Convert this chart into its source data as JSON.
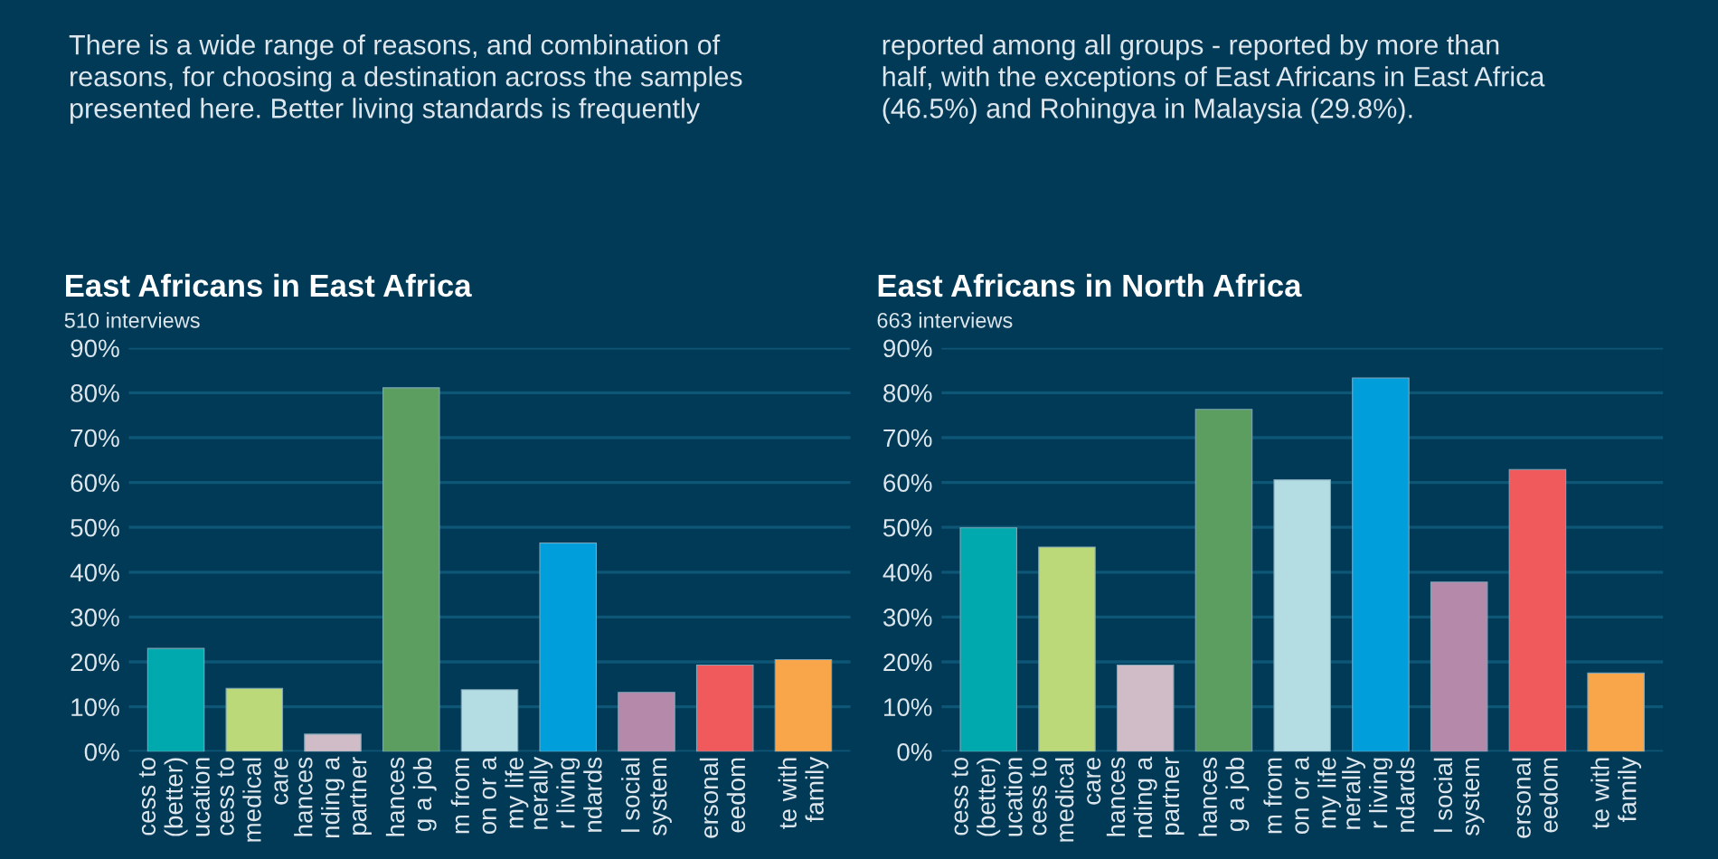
{
  "chart_data": [
    {
      "type": "bar",
      "title": "East Africans in East Africa",
      "subtitle": "510 interviews",
      "annotations": [
        "There is a wide range of reasons, and combination of\nreasons, for choosing a destination across the samples\npresented here. Better living standards is frequently"
      ],
      "categories": [
        "cess to\n(better)\nucation",
        "cess to\nmedical\ncare",
        "hances\nnding a\npartner",
        "hances\ng a job",
        "m from\non or a\nmy life",
        "nerally\nr living\nndards",
        "l social\nsystem",
        "ersonal\needom",
        "te with\nfamily"
      ],
      "values": [
        23,
        14.1,
        3.9,
        81.1,
        13.8,
        46.5,
        13.2,
        19.3,
        20.5
      ],
      "colors": [
        "#00a9ad",
        "#bcd97a",
        "#cfbcc6",
        "#5b9e60",
        "#b4dde3",
        "#009fdb",
        "#b589aa",
        "#f05a5d",
        "#f9a54a"
      ],
      "ylim": [
        0,
        90
      ],
      "yticks": [
        {
          "value": 0,
          "label": "0%"
        },
        {
          "value": 10,
          "label": "10%"
        },
        {
          "value": 20,
          "label": "20%"
        },
        {
          "value": 30,
          "label": "30%"
        },
        {
          "value": 40,
          "label": "40%"
        },
        {
          "value": 50,
          "label": "50%"
        },
        {
          "value": 60,
          "label": "60%"
        },
        {
          "value": 70,
          "label": "70%"
        },
        {
          "value": 80,
          "label": "80%"
        },
        {
          "value": 90,
          "label": "90%"
        }
      ],
      "grid": "y"
    },
    {
      "type": "bar",
      "title": "East Africans in North Africa",
      "subtitle": "663 interviews",
      "annotations": [
        "reported among all groups - reported by more than\nhalf, with the exceptions of East Africans in East Africa\n(46.5%) and Rohingya in Malaysia (29.8%)."
      ],
      "categories": [
        "cess to\n(better)\nucation",
        "cess to\nmedical\ncare",
        "hances\nnding a\npartner",
        "hances\ng a job",
        "m from\non or a\nmy life",
        "nerally\nr living\nndards",
        "l social\nsystem",
        "ersonal\needom",
        "te with\nfamily"
      ],
      "values": [
        49.9,
        45.6,
        19.3,
        76.3,
        60.6,
        83.3,
        37.8,
        62.9,
        17.5
      ],
      "colors": [
        "#00a9ad",
        "#bcd97a",
        "#cfbcc6",
        "#5b9e60",
        "#b4dde3",
        "#009fdb",
        "#b589aa",
        "#f05a5d",
        "#f9a54a"
      ],
      "ylim": [
        0,
        90
      ],
      "yticks": [
        {
          "value": 0,
          "label": "0%"
        },
        {
          "value": 10,
          "label": "10%"
        },
        {
          "value": 20,
          "label": "20%"
        },
        {
          "value": 30,
          "label": "30%"
        },
        {
          "value": 40,
          "label": "40%"
        },
        {
          "value": 50,
          "label": "50%"
        },
        {
          "value": 60,
          "label": "60%"
        },
        {
          "value": 70,
          "label": "70%"
        },
        {
          "value": 80,
          "label": "80%"
        },
        {
          "value": 90,
          "label": "90%"
        }
      ],
      "grid": "y"
    }
  ]
}
